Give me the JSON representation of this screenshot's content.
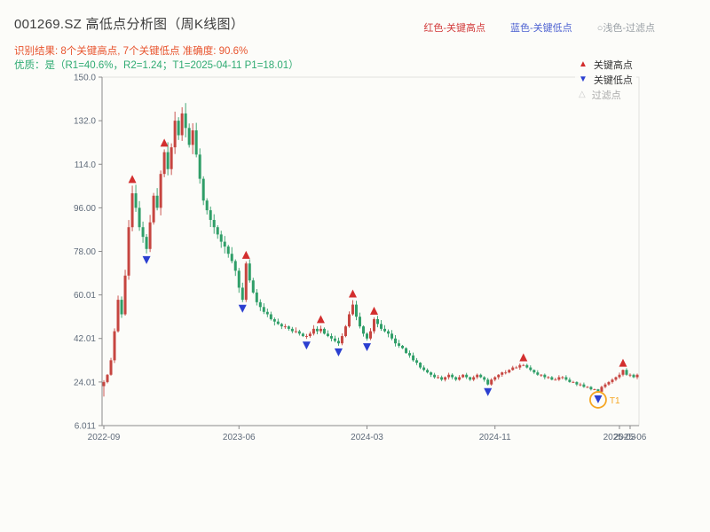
{
  "header": {
    "title": "001269.SZ 高低点分析图（周K线图）",
    "legend_high": "红色-关键高点",
    "legend_low": "蓝色-关键低点",
    "legend_filter": "○浅色-过滤点",
    "result_line": "识别结果: 8个关键高点, 7个关键低点  准确度: 90.6%",
    "quality_line": "优质：是（R1=40.6%，R2=1.24；T1=2025-04-11 P1=18.01）"
  },
  "plot_legend": {
    "high": "关键高点",
    "low": "关键低点",
    "filter": "过滤点"
  },
  "analysis": {
    "key_high_count": 8,
    "key_low_count": 7,
    "accuracy": "90.6%",
    "R1": "40.6%",
    "R2": "1.24",
    "T1": "2025-04-11",
    "P1": "18.01"
  },
  "colors": {
    "candle_up": "#c64540",
    "candle_down": "#2f9e68",
    "marker_high": "#d32f2f",
    "marker_low": "#2b3fd0",
    "annotation": "#f5a623",
    "axis": "#8a8a8a",
    "border": "#e2e2de",
    "tick_text": "#5f6b7a"
  },
  "chart_data": {
    "type": "candlestick",
    "symbol": "001269.SZ",
    "period": "weekly",
    "ylim": [
      6.011,
      150.0
    ],
    "first_low": 18,
    "y_ticks": [
      {
        "v": 150.0,
        "label": "150.0"
      },
      {
        "v": 132.0,
        "label": "132.0"
      },
      {
        "v": 114.0,
        "label": "114.0"
      },
      {
        "v": 96.0,
        "label": "96.00"
      },
      {
        "v": 78.0,
        "label": "78.00"
      },
      {
        "v": 60.01,
        "label": "60.01"
      },
      {
        "v": 42.01,
        "label": "42.01"
      },
      {
        "v": 24.01,
        "label": "24.01"
      },
      {
        "v": 6.011,
        "label": "6.011"
      }
    ],
    "x_ticks": [
      {
        "i": 0,
        "label": "2022-09"
      },
      {
        "i": 38,
        "label": "2023-06"
      },
      {
        "i": 74,
        "label": "2024-03"
      },
      {
        "i": 110,
        "label": "2024-11"
      },
      {
        "i": 145,
        "label": "2025-03"
      },
      {
        "i": 148,
        "label": "2025-06"
      }
    ],
    "closes": [
      24,
      27,
      33,
      45,
      58,
      52,
      68,
      88,
      102,
      96,
      88,
      84,
      79,
      90,
      101,
      96,
      110,
      119,
      112,
      121,
      132,
      126,
      135,
      129,
      122,
      128,
      118,
      108,
      99,
      95,
      91,
      88,
      85,
      82,
      80,
      77,
      74,
      70,
      63,
      58,
      73,
      66,
      61,
      57,
      55,
      53,
      52,
      50,
      49,
      48,
      47,
      47,
      46,
      45,
      45,
      44,
      43,
      43,
      44,
      46,
      45,
      46,
      44,
      43,
      42,
      41,
      40,
      43,
      47,
      52,
      56,
      51,
      47,
      44,
      42,
      45,
      50,
      48,
      46,
      45,
      44,
      42,
      40,
      39,
      38,
      36,
      35,
      33,
      32,
      30,
      29,
      28,
      27,
      26,
      26,
      25,
      26,
      27,
      26,
      25,
      26,
      27,
      26,
      25,
      26,
      27,
      26,
      25,
      23,
      25,
      26,
      27,
      28,
      28,
      29,
      30,
      30,
      31,
      31,
      30,
      29,
      28,
      27,
      27,
      26,
      26,
      25,
      25,
      26,
      26,
      25,
      24,
      24,
      23,
      23,
      22,
      22,
      21,
      21,
      20,
      22,
      23,
      24,
      25,
      26,
      27,
      29,
      27,
      27,
      26,
      27
    ],
    "key_highs": [
      {
        "week": 8,
        "price": 104
      },
      {
        "week": 17,
        "price": 122
      },
      {
        "week": 40,
        "price": 76
      },
      {
        "week": 61,
        "price": 48
      },
      {
        "week": 70,
        "price": 58
      },
      {
        "week": 76,
        "price": 52
      },
      {
        "week": 118,
        "price": 32
      },
      {
        "week": 146,
        "price": 30
      }
    ],
    "key_lows": [
      {
        "week": 12,
        "price": 77
      },
      {
        "week": 39,
        "price": 56
      },
      {
        "week": 57,
        "price": 41.5
      },
      {
        "week": 66,
        "price": 39
      },
      {
        "week": 74,
        "price": 40.5
      },
      {
        "week": 108,
        "price": 22.5
      },
      {
        "week": 139,
        "price": 19.5
      }
    ],
    "t1_annotation": {
      "week": 139,
      "label": "T1",
      "date": "2025-04-11",
      "price": 18.01
    }
  }
}
